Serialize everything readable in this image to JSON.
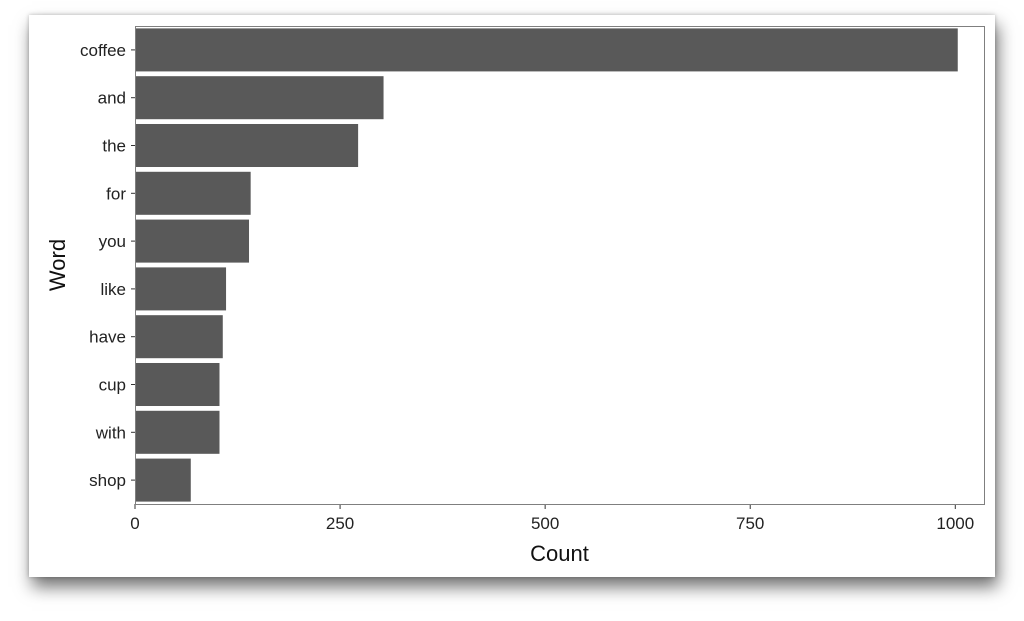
{
  "chart_data": {
    "type": "bar",
    "orientation": "horizontal",
    "categories": [
      "coffee",
      "and",
      "the",
      "for",
      "you",
      "like",
      "have",
      "cup",
      "with",
      "shop"
    ],
    "values": [
      1003,
      303,
      272,
      141,
      139,
      111,
      107,
      103,
      103,
      68
    ],
    "xlabel": "Count",
    "ylabel": "Word",
    "xlim": [
      0,
      1035
    ],
    "xticks": [
      0,
      250,
      500,
      750,
      1000
    ],
    "grid": false,
    "bar_color": "#595959",
    "panel_border_color": "#7f7f7f",
    "background": "#ffffff"
  }
}
